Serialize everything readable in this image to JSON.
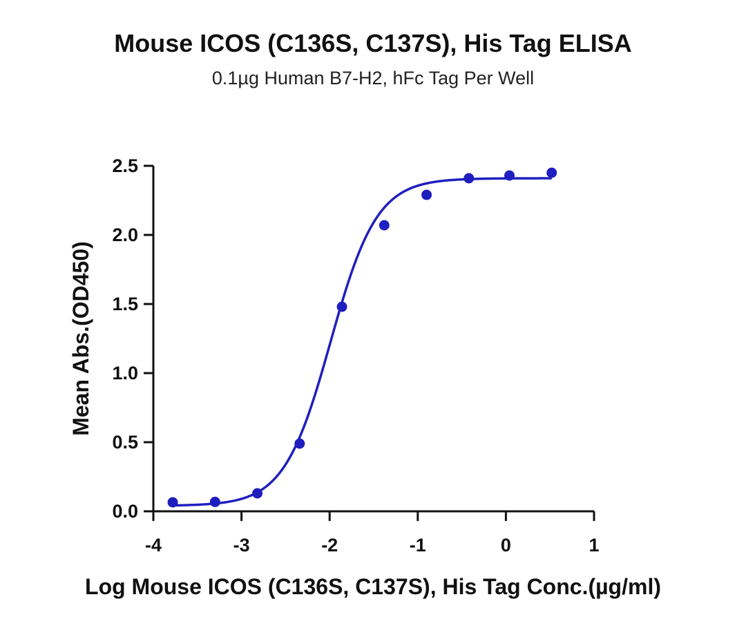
{
  "chart_data": {
    "type": "scatter",
    "title": "Mouse ICOS (C136S, C137S), His Tag ELISA",
    "subtitle": "0.1µg Human B7-H2, hFc Tag Per Well",
    "xlabel": "Log Mouse ICOS (C136S, C137S), His Tag Conc.(µg/ml)",
    "ylabel": "Mean Abs.(OD450)",
    "xlim": [
      -4,
      1
    ],
    "ylim": [
      0,
      2.5
    ],
    "x_ticks": [
      "-4",
      "-3",
      "-2",
      "-1",
      "0",
      "1"
    ],
    "y_ticks": [
      "0.0",
      "0.5",
      "1.0",
      "1.5",
      "2.0",
      "2.5"
    ],
    "grid": false,
    "legend": "none",
    "series": [
      {
        "color": "#1f1fbf",
        "points": [
          {
            "x": -3.78,
            "y": 0.065
          },
          {
            "x": -3.3,
            "y": 0.068
          },
          {
            "x": -2.82,
            "y": 0.13
          },
          {
            "x": -2.34,
            "y": 0.49
          },
          {
            "x": -1.86,
            "y": 1.48
          },
          {
            "x": -1.38,
            "y": 2.07
          },
          {
            "x": -0.9,
            "y": 2.29
          },
          {
            "x": -0.42,
            "y": 2.41
          },
          {
            "x": 0.04,
            "y": 2.43
          },
          {
            "x": 0.52,
            "y": 2.45
          }
        ],
        "fit": {
          "type": "4PL",
          "bottom": 0.04,
          "top": 2.41,
          "logEC50": -1.99,
          "hill": 1.65,
          "range": [
            -3.78,
            0.52
          ]
        }
      }
    ]
  }
}
